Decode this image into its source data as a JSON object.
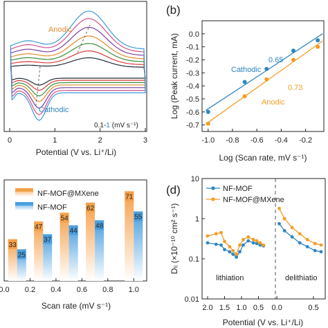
{
  "chart_data": [
    {
      "type": "line",
      "panel": "a",
      "xlabel": "Potential (V vs. Li⁺/Li)",
      "ylabel": "",
      "xticks": [
        "0",
        "1",
        "2",
        "3"
      ],
      "xlim": [
        0,
        3
      ],
      "annotations": {
        "top": "Anodic",
        "bottom": "Cathodic",
        "scan": "0.1-",
        "scan_hi": "1",
        "unit": "(mV s⁻¹)"
      },
      "curves": [
        {
          "color": "#1f2a33",
          "scale": 0.25
        },
        {
          "color": "#d93a3a",
          "scale": 0.36
        },
        {
          "color": "#3a8f3a",
          "scale": 0.48
        },
        {
          "color": "#e58a2c",
          "scale": 0.6
        },
        {
          "color": "#7b3fa0",
          "scale": 0.74
        },
        {
          "color": "#d2508a",
          "scale": 0.88
        },
        {
          "color": "#3a9ad9",
          "scale": 1.0
        }
      ]
    },
    {
      "type": "scatter",
      "panel": "b",
      "xlabel": "Log (Scan rate, mV s⁻¹)",
      "ylabel": "Log (Peak current, mA)",
      "xlim": [
        -1.05,
        -0.05
      ],
      "ylim": [
        -0.75,
        0.1
      ],
      "xticks": [
        "-1.0",
        "-0.8",
        "-0.6",
        "-0.4",
        "-0.2"
      ],
      "yticks": [
        "0.0",
        "-0.1",
        "-0.2",
        "-0.3",
        "-0.4",
        "-0.5",
        "-0.6",
        "-0.7"
      ],
      "series": [
        {
          "name": "Cathodic",
          "slope_label": "0.65",
          "color": "#2e86c1",
          "x": [
            -1.0,
            -0.7,
            -0.52,
            -0.3,
            -0.1
          ],
          "y": [
            -0.6,
            -0.37,
            -0.27,
            -0.13,
            -0.05
          ]
        },
        {
          "name": "Anodic",
          "slope_label": "0.73",
          "color": "#f39c24",
          "x": [
            -1.0,
            -0.7,
            -0.52,
            -0.3,
            -0.1
          ],
          "y": [
            -0.69,
            -0.48,
            -0.35,
            -0.2,
            -0.1
          ]
        }
      ]
    },
    {
      "type": "bar",
      "panel": "c",
      "xlabel": "Scan rate (mV s⁻¹)",
      "xticks": [
        "0.0",
        "0.2",
        "0.4",
        "0.6",
        "0.8",
        "1.0"
      ],
      "xlim": [
        0,
        1.1
      ],
      "ylim": [
        0,
        80
      ],
      "x": [
        0.1,
        0.3,
        0.5,
        0.7,
        1.0
      ],
      "series": [
        {
          "name": "NF-MOF@MXene",
          "color": "#f5a04a",
          "values": [
            33,
            47,
            54,
            62,
            71
          ]
        },
        {
          "name": "NF-MOF",
          "color": "#4a9fe0",
          "values": [
            25,
            37,
            44,
            48,
            55
          ]
        }
      ]
    },
    {
      "type": "line",
      "panel": "d",
      "xlabel": "Potential (V vs. Li⁺/Li)",
      "ylabel": "Dₗᵢ (×10⁻¹⁰ cm² s⁻¹)",
      "ylim_log": [
        0.01,
        10
      ],
      "yticks": [
        "10",
        "1",
        "0.1",
        "0.01"
      ],
      "xticks": [
        "2.0",
        "1.5",
        "1.0",
        "0.5",
        "0.0",
        "0.5"
      ],
      "region_labels": [
        "lithiation",
        "delithiatio"
      ],
      "series": [
        {
          "name": "NF-MOF",
          "color": "#2e86c1",
          "lithiation": [
            [
              2.0,
              0.25
            ],
            [
              1.75,
              0.23
            ],
            [
              1.6,
              0.22
            ],
            [
              1.5,
              0.17
            ],
            [
              1.35,
              0.15
            ],
            [
              1.25,
              0.13
            ],
            [
              1.15,
              0.11
            ],
            [
              1.05,
              0.15
            ],
            [
              0.95,
              0.22
            ],
            [
              0.8,
              0.28
            ],
            [
              0.65,
              0.25
            ],
            [
              0.55,
              0.24
            ],
            [
              0.45,
              0.22
            ],
            [
              0.35,
              0.21
            ]
          ],
          "delithiation": [
            [
              0.05,
              0.75
            ],
            [
              0.12,
              0.5
            ],
            [
              0.22,
              0.35
            ],
            [
              0.32,
              0.25
            ],
            [
              0.42,
              0.2
            ],
            [
              0.52,
              0.16
            ],
            [
              0.6,
              0.15
            ]
          ]
        },
        {
          "name": "NF-MOF@MXene",
          "color": "#f39c24",
          "lithiation": [
            [
              2.0,
              0.37
            ],
            [
              1.75,
              0.42
            ],
            [
              1.6,
              0.45
            ],
            [
              1.5,
              0.27
            ],
            [
              1.35,
              0.2
            ],
            [
              1.25,
              0.16
            ],
            [
              1.15,
              0.13
            ],
            [
              1.05,
              0.22
            ],
            [
              0.95,
              0.3
            ],
            [
              0.8,
              0.35
            ],
            [
              0.65,
              0.3
            ],
            [
              0.55,
              0.28
            ],
            [
              0.45,
              0.25
            ],
            [
              0.35,
              0.22
            ]
          ],
          "delithiation": [
            [
              0.05,
              1.8
            ],
            [
              0.12,
              1.0
            ],
            [
              0.22,
              0.6
            ],
            [
              0.32,
              0.42
            ],
            [
              0.42,
              0.3
            ],
            [
              0.52,
              0.24
            ],
            [
              0.6,
              0.22
            ]
          ]
        }
      ]
    }
  ],
  "panel_labels": {
    "b": "(b)",
    "d": "(d)"
  }
}
